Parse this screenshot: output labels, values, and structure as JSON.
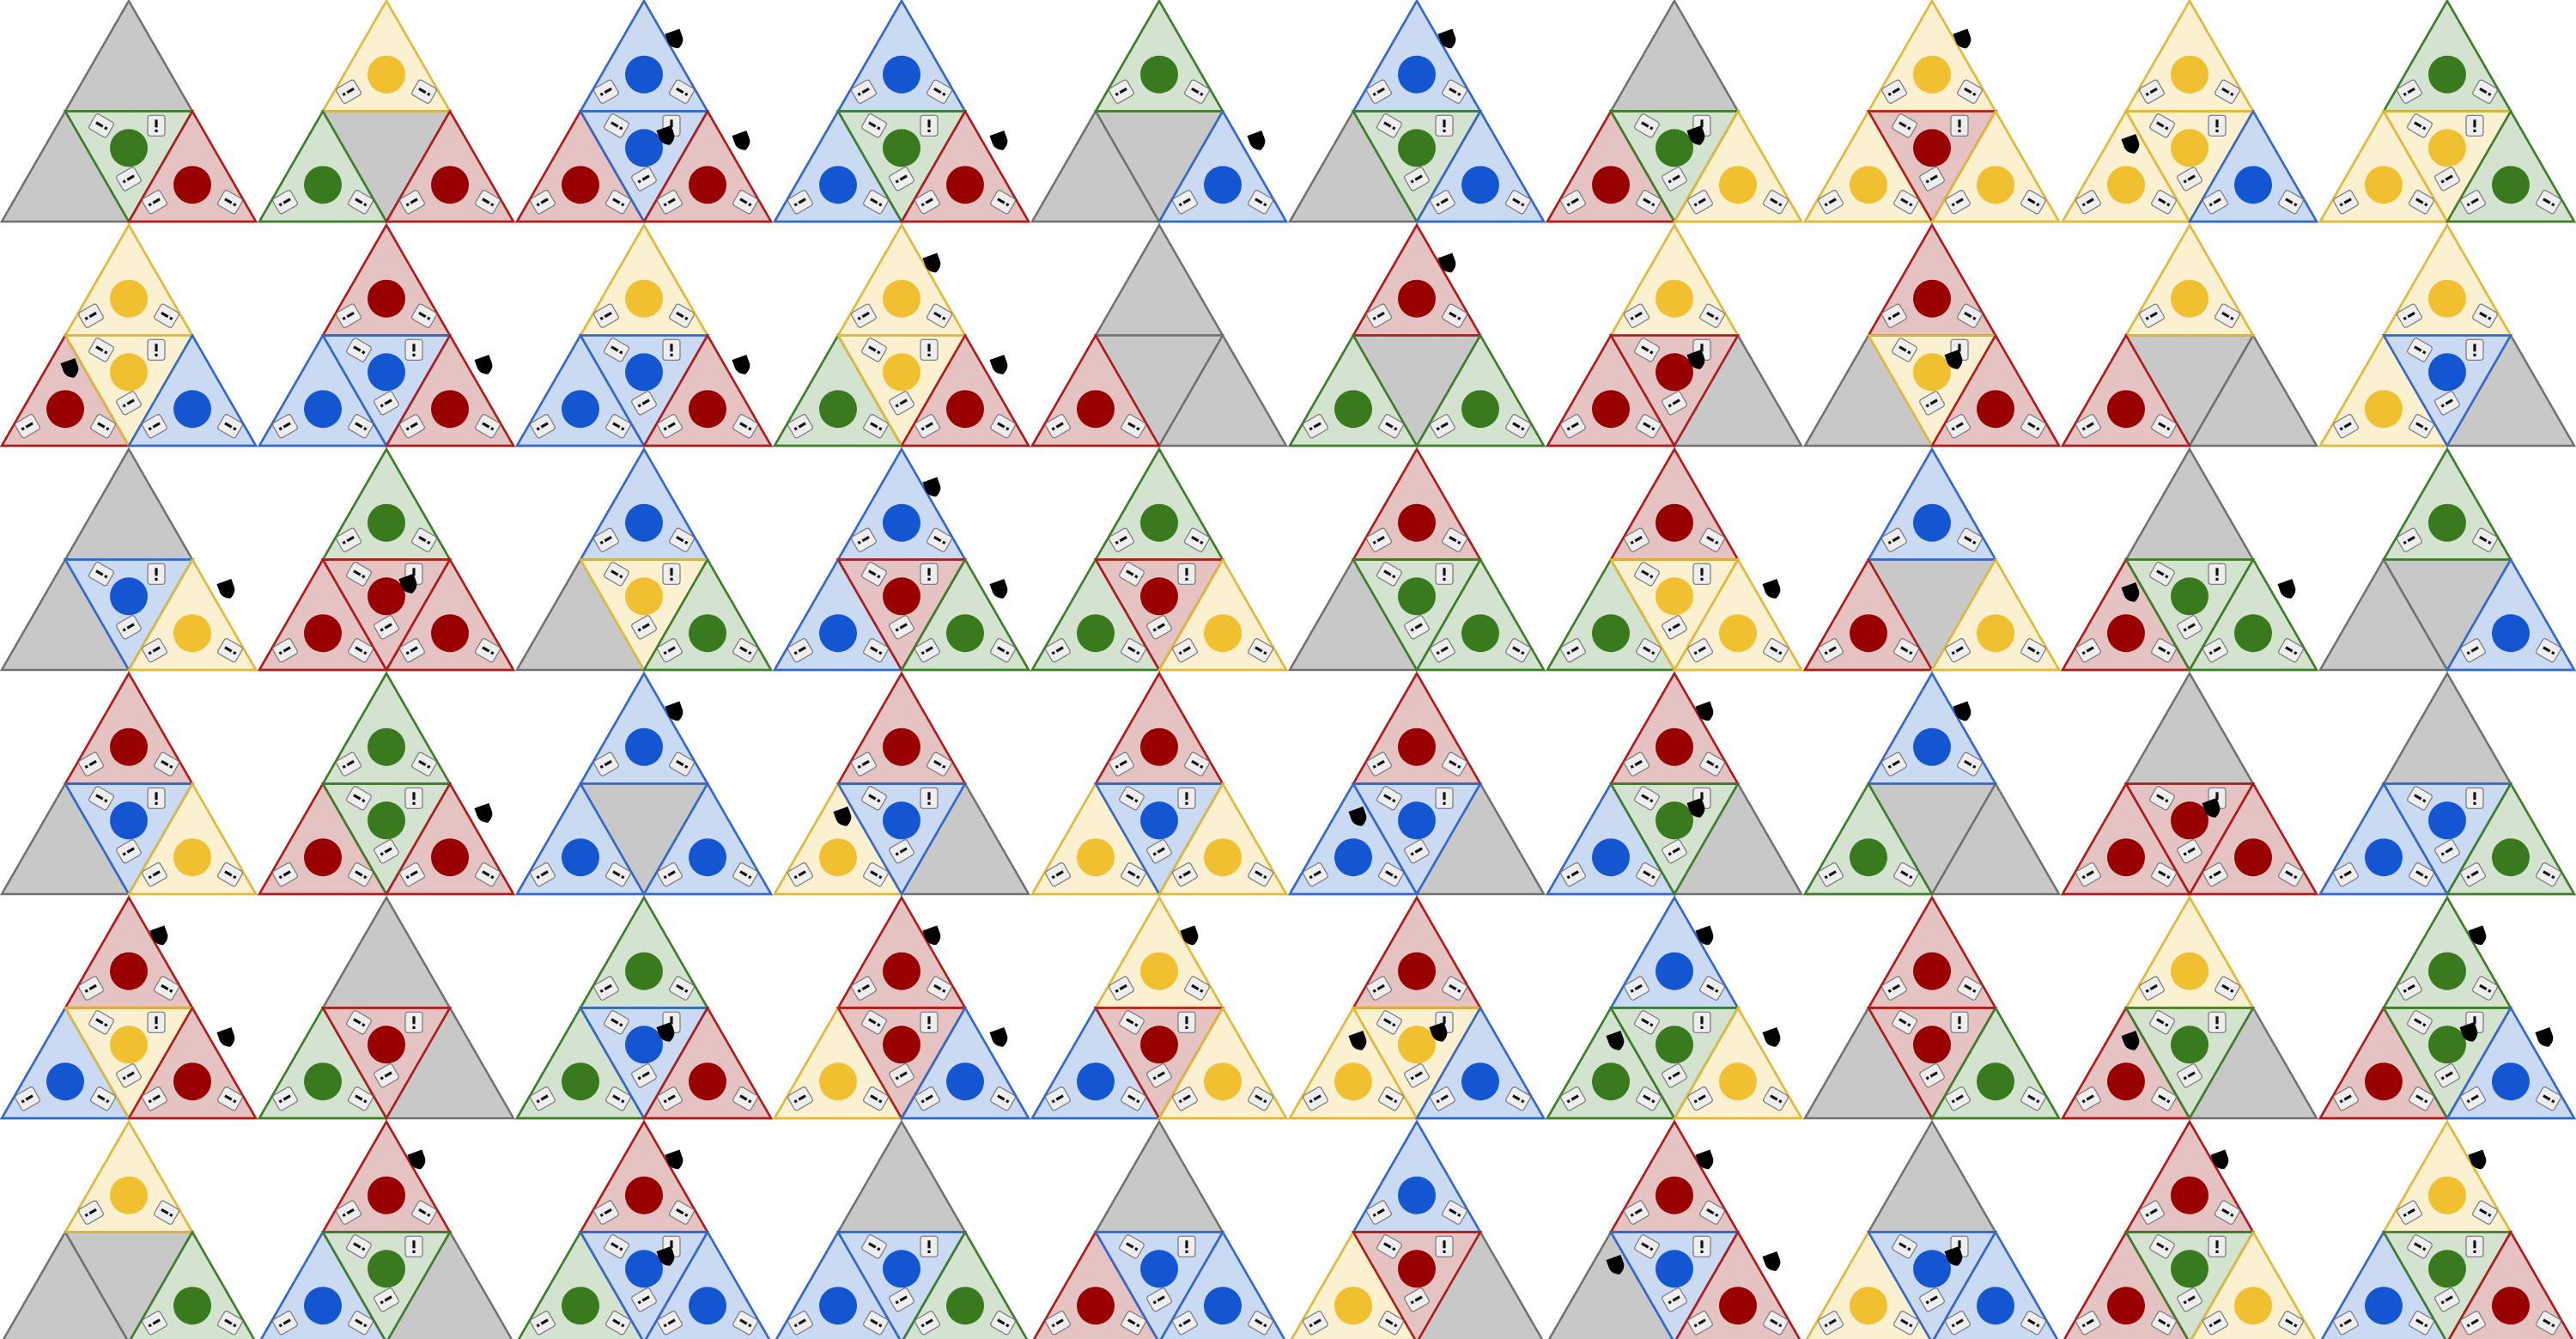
{
  "palette": {
    "R": {
      "fill": "#e6c3c3",
      "stroke": "#b01c1c",
      "dot": "#990000"
    },
    "G": {
      "fill": "#d3e3cf",
      "stroke": "#3e7d2a",
      "dot": "#3a7a1e"
    },
    "B": {
      "fill": "#cadaf2",
      "stroke": "#3568cc",
      "dot": "#1456d2"
    },
    "Y": {
      "fill": "#fbf0cf",
      "stroke": "#e0b93a",
      "dot": "#f0c030"
    },
    "X": {
      "fill": "#c8c8c8",
      "stroke": "#707070",
      "dot": null
    }
  },
  "icons": {
    "coin": "filled-circle",
    "tag": "tilted-card-icon",
    "shield": "black-shield-icon"
  },
  "puzzles": [
    {
      "id": "r1c1",
      "cells": [
        "X",
        "X",
        "G",
        "R"
      ],
      "shields": []
    },
    {
      "id": "r1c2",
      "cells": [
        "Y",
        "G",
        "X",
        "R"
      ],
      "shields": []
    },
    {
      "id": "r1c3",
      "cells": [
        "B",
        "R",
        "B",
        "R"
      ],
      "shields": [
        "top",
        "center",
        "right"
      ]
    },
    {
      "id": "r1c4",
      "cells": [
        "B",
        "B",
        "G",
        "R"
      ],
      "shields": [
        "right"
      ]
    },
    {
      "id": "r1c5",
      "cells": [
        "G",
        "X",
        "X",
        "B"
      ],
      "shields": [
        "right"
      ]
    },
    {
      "id": "r1c6",
      "cells": [
        "B",
        "X",
        "G",
        "B"
      ],
      "shields": [
        "top"
      ]
    },
    {
      "id": "r1c7",
      "cells": [
        "X",
        "R",
        "G",
        "Y"
      ],
      "shields": [
        "center"
      ]
    },
    {
      "id": "r1c8",
      "cells": [
        "Y",
        "Y",
        "R",
        "Y"
      ],
      "shields": [
        "top"
      ]
    },
    {
      "id": "r1c9",
      "cells": [
        "Y",
        "Y",
        "Y",
        "B"
      ],
      "shields": [
        "left"
      ]
    },
    {
      "id": "r1c10",
      "cells": [
        "G",
        "Y",
        "Y",
        "G"
      ],
      "shields": []
    },
    {
      "id": "r2c1",
      "cells": [
        "Y",
        "R",
        "Y",
        "B"
      ],
      "shields": [
        "left"
      ]
    },
    {
      "id": "r2c2",
      "cells": [
        "R",
        "B",
        "B",
        "R"
      ],
      "shields": [
        "right"
      ]
    },
    {
      "id": "r2c3",
      "cells": [
        "Y",
        "B",
        "B",
        "R"
      ],
      "shields": [
        "right"
      ]
    },
    {
      "id": "r2c4",
      "cells": [
        "Y",
        "G",
        "Y",
        "R"
      ],
      "shields": [
        "top",
        "right"
      ]
    },
    {
      "id": "r2c5",
      "cells": [
        "X",
        "R",
        "X",
        "X"
      ],
      "shields": []
    },
    {
      "id": "r2c6",
      "cells": [
        "R",
        "G",
        "X",
        "G"
      ],
      "shields": [
        "top"
      ]
    },
    {
      "id": "r2c7",
      "cells": [
        "Y",
        "R",
        "R",
        "X"
      ],
      "shields": [
        "center"
      ]
    },
    {
      "id": "r2c8",
      "cells": [
        "R",
        "X",
        "Y",
        "R"
      ],
      "shields": [
        "center"
      ]
    },
    {
      "id": "r2c9",
      "cells": [
        "Y",
        "R",
        "X",
        "X"
      ],
      "shields": []
    },
    {
      "id": "r2c10",
      "cells": [
        "Y",
        "Y",
        "B",
        "X"
      ],
      "shields": []
    },
    {
      "id": "r3c1",
      "cells": [
        "X",
        "X",
        "B",
        "Y"
      ],
      "shields": [
        "right"
      ]
    },
    {
      "id": "r3c2",
      "cells": [
        "G",
        "R",
        "R",
        "R"
      ],
      "shields": [
        "center"
      ]
    },
    {
      "id": "r3c3",
      "cells": [
        "B",
        "X",
        "Y",
        "G"
      ],
      "shields": []
    },
    {
      "id": "r3c4",
      "cells": [
        "B",
        "B",
        "R",
        "G"
      ],
      "shields": [
        "top",
        "right"
      ]
    },
    {
      "id": "r3c5",
      "cells": [
        "G",
        "G",
        "R",
        "Y"
      ],
      "shields": []
    },
    {
      "id": "r3c6",
      "cells": [
        "R",
        "X",
        "G",
        "G"
      ],
      "shields": []
    },
    {
      "id": "r3c7",
      "cells": [
        "R",
        "G",
        "Y",
        "Y"
      ],
      "shields": [
        "right"
      ]
    },
    {
      "id": "r3c8",
      "cells": [
        "B",
        "R",
        "X",
        "Y"
      ],
      "shields": []
    },
    {
      "id": "r3c9",
      "cells": [
        "X",
        "R",
        "G",
        "G"
      ],
      "shields": [
        "left",
        "right"
      ]
    },
    {
      "id": "r3c10",
      "cells": [
        "G",
        "X",
        "X",
        "B"
      ],
      "shields": []
    },
    {
      "id": "r4c1",
      "cells": [
        "R",
        "X",
        "B",
        "Y"
      ],
      "shields": []
    },
    {
      "id": "r4c2",
      "cells": [
        "G",
        "R",
        "G",
        "R"
      ],
      "shields": [
        "right"
      ]
    },
    {
      "id": "r4c3",
      "cells": [
        "B",
        "B",
        "X",
        "B"
      ],
      "shields": [
        "top"
      ]
    },
    {
      "id": "r4c4",
      "cells": [
        "R",
        "Y",
        "B",
        "X"
      ],
      "shields": [
        "left"
      ]
    },
    {
      "id": "r4c5",
      "cells": [
        "R",
        "Y",
        "B",
        "Y"
      ],
      "shields": []
    },
    {
      "id": "r4c6",
      "cells": [
        "R",
        "B",
        "B",
        "X"
      ],
      "shields": [
        "left"
      ]
    },
    {
      "id": "r4c7",
      "cells": [
        "R",
        "B",
        "G",
        "X"
      ],
      "shields": [
        "top",
        "center"
      ]
    },
    {
      "id": "r4c8",
      "cells": [
        "B",
        "G",
        "X",
        "X"
      ],
      "shields": [
        "top"
      ]
    },
    {
      "id": "r4c9",
      "cells": [
        "X",
        "R",
        "R",
        "R"
      ],
      "shields": [
        "center"
      ]
    },
    {
      "id": "r4c10",
      "cells": [
        "X",
        "B",
        "B",
        "G"
      ],
      "shields": []
    },
    {
      "id": "r5c1",
      "cells": [
        "R",
        "B",
        "Y",
        "R"
      ],
      "shields": [
        "top",
        "right"
      ]
    },
    {
      "id": "r5c2",
      "cells": [
        "X",
        "G",
        "R",
        "X"
      ],
      "shields": []
    },
    {
      "id": "r5c3",
      "cells": [
        "G",
        "G",
        "B",
        "R"
      ],
      "shields": [
        "center"
      ]
    },
    {
      "id": "r5c4",
      "cells": [
        "R",
        "Y",
        "R",
        "B"
      ],
      "shields": [
        "top",
        "right"
      ]
    },
    {
      "id": "r5c5",
      "cells": [
        "Y",
        "B",
        "R",
        "Y"
      ],
      "shields": [
        "top"
      ]
    },
    {
      "id": "r5c6",
      "cells": [
        "R",
        "Y",
        "Y",
        "B"
      ],
      "shields": [
        "left",
        "center"
      ]
    },
    {
      "id": "r5c7",
      "cells": [
        "B",
        "G",
        "G",
        "Y"
      ],
      "shields": [
        "top",
        "right",
        "left"
      ]
    },
    {
      "id": "r5c8",
      "cells": [
        "R",
        "X",
        "R",
        "G"
      ],
      "shields": []
    },
    {
      "id": "r5c9",
      "cells": [
        "Y",
        "R",
        "G",
        "X"
      ],
      "shields": [
        "left"
      ]
    },
    {
      "id": "r5c10",
      "cells": [
        "G",
        "R",
        "G",
        "B"
      ],
      "shields": [
        "top",
        "center",
        "right"
      ]
    },
    {
      "id": "r6c1",
      "cells": [
        "Y",
        "X",
        "X",
        "G"
      ],
      "shields": []
    },
    {
      "id": "r6c2",
      "cells": [
        "R",
        "B",
        "G",
        "X"
      ],
      "shields": [
        "top"
      ]
    },
    {
      "id": "r6c3",
      "cells": [
        "R",
        "G",
        "B",
        "B"
      ],
      "shields": [
        "top",
        "center"
      ]
    },
    {
      "id": "r6c4",
      "cells": [
        "X",
        "B",
        "B",
        "G"
      ],
      "shields": []
    },
    {
      "id": "r6c5",
      "cells": [
        "X",
        "R",
        "B",
        "B"
      ],
      "shields": []
    },
    {
      "id": "r6c6",
      "cells": [
        "B",
        "Y",
        "R",
        "X"
      ],
      "shields": []
    },
    {
      "id": "r6c7",
      "cells": [
        "R",
        "X",
        "B",
        "R"
      ],
      "shields": [
        "top",
        "left",
        "right"
      ]
    },
    {
      "id": "r6c8",
      "cells": [
        "X",
        "Y",
        "B",
        "B"
      ],
      "shields": [
        "center"
      ]
    },
    {
      "id": "r6c9",
      "cells": [
        "R",
        "R",
        "G",
        "Y"
      ],
      "shields": [
        "top"
      ]
    },
    {
      "id": "r6c10",
      "cells": [
        "Y",
        "B",
        "G",
        "R"
      ],
      "shields": [
        "top"
      ]
    }
  ]
}
